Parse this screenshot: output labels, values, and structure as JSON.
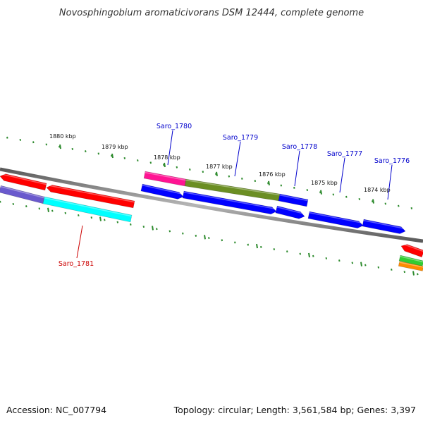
{
  "title": "Novosphingobium aromaticivorans DSM 12444, complete genome",
  "footer": {
    "accession": "Accession: NC_007794",
    "summary": "Topology: circular; Length: 3,561,584 bp; Genes: 3,397"
  },
  "colors": {
    "backbone": "#7f7f7f",
    "tick": "#2e8b2e",
    "label_forward": "#0000cc",
    "label_reverse": "#cc0000"
  },
  "scale_labels": [
    "1880 kbp",
    "1879 kbp",
    "1878 kbp",
    "1877 kbp",
    "1876 kbp",
    "1875 kbp",
    "1874 kbp"
  ],
  "gene_labels": [
    {
      "name": "Saro_1780",
      "strand": "forward"
    },
    {
      "name": "Saro_1779",
      "strand": "forward"
    },
    {
      "name": "Saro_1778",
      "strand": "forward"
    },
    {
      "name": "Saro_1777",
      "strand": "forward"
    },
    {
      "name": "Saro_1776",
      "strand": "forward"
    },
    {
      "name": "Saro_1781",
      "strand": "reverse"
    }
  ],
  "features": [
    {
      "color": "#ff0000",
      "track": "outer",
      "direction": "left"
    },
    {
      "color": "#ff0000",
      "track": "outer",
      "direction": "left"
    },
    {
      "color": "#ff1493",
      "track": "outer",
      "direction": "none"
    },
    {
      "color": "#6b8e23",
      "track": "outer",
      "direction": "none"
    },
    {
      "color": "#0000ff",
      "track": "outer",
      "direction": "none"
    },
    {
      "color": "#6a5acd",
      "track": "inner",
      "direction": "none"
    },
    {
      "color": "#00ffff",
      "track": "inner",
      "direction": "none"
    },
    {
      "color": "#0000ff",
      "track": "inner",
      "direction": "right"
    },
    {
      "color": "#0000ff",
      "track": "inner",
      "direction": "right"
    },
    {
      "color": "#0000ff",
      "track": "inner",
      "direction": "right"
    },
    {
      "color": "#0000ff",
      "track": "inner",
      "direction": "right"
    },
    {
      "color": "#0000ff",
      "track": "inner",
      "direction": "right"
    },
    {
      "color": "#ff0000",
      "track": "outer",
      "direction": "left"
    },
    {
      "color": "#32cd32",
      "track": "inner",
      "direction": "none"
    },
    {
      "color": "#ff8c00",
      "track": "inner",
      "direction": "none"
    }
  ]
}
